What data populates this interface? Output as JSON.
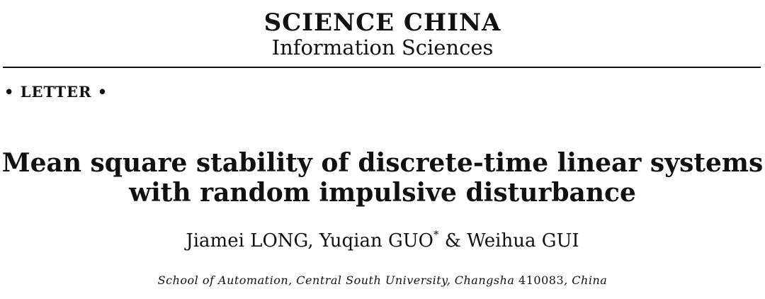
{
  "journal": {
    "title": "SCIENCE CHINA",
    "subtitle": "Information Sciences"
  },
  "article_type": "• LETTER •",
  "article": {
    "title_line1": "Mean square stability of discrete-time linear systems",
    "title_line2": "with random impulsive disturbance"
  },
  "authors": {
    "before_mark": "Jiamei LONG, Yuqian GUO",
    "corresponding_mark": "*",
    "after_mark": " & Weihua GUI"
  },
  "affiliation": {
    "institution": "School of Automation, Central South University, Changsha",
    "postcode": "410083",
    "country": "China"
  }
}
